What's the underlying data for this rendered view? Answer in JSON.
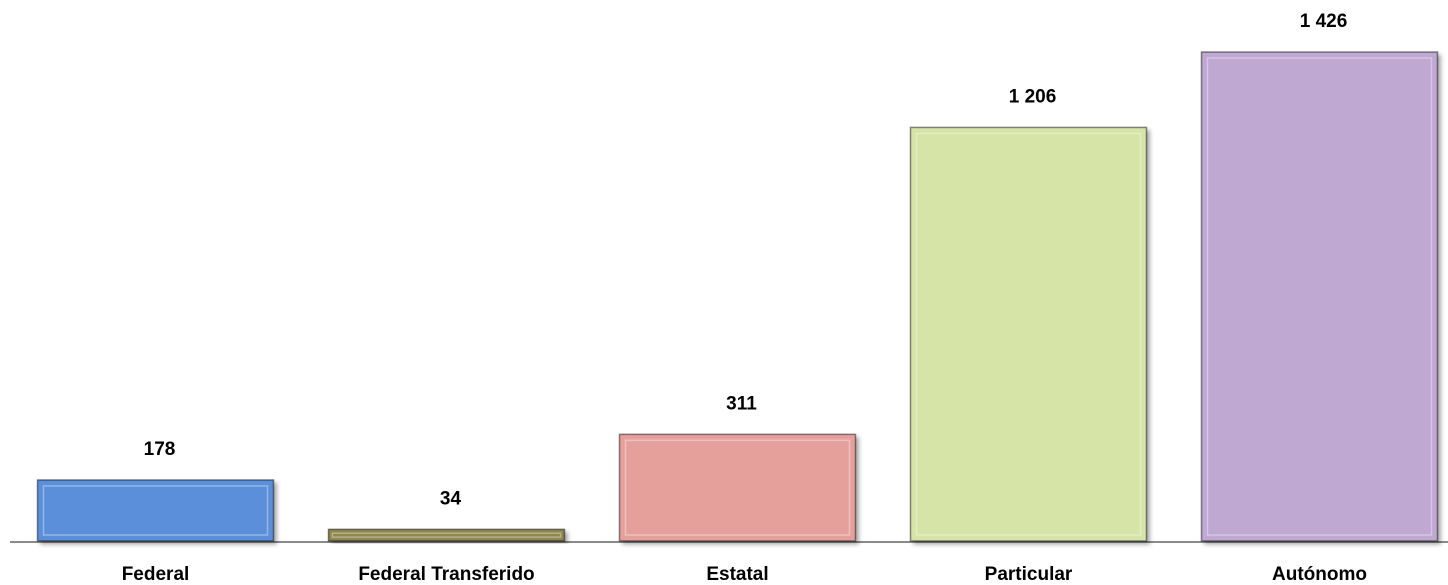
{
  "chart_data": {
    "type": "bar",
    "categories": [
      "Federal",
      "Federal Transferido",
      "Estatal",
      "Particular",
      "Autónomo"
    ],
    "values": [
      178,
      34,
      311,
      1206,
      1426
    ],
    "value_labels": [
      "178",
      "34",
      "311",
      "1 206",
      "1 426"
    ],
    "colors": [
      "#5b8fd9",
      "#8d874f",
      "#e6a09b",
      "#d6e4a8",
      "#bfa8d2"
    ]
  }
}
